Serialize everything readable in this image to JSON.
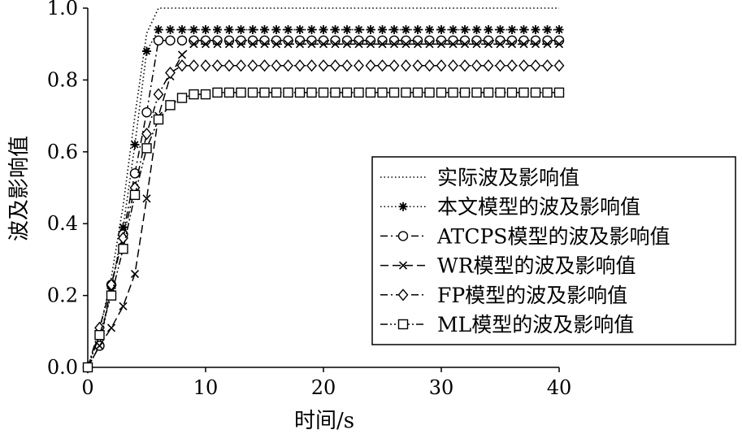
{
  "chart_data": {
    "type": "line",
    "title": "",
    "xlabel": "时间/s",
    "ylabel": "波及影响值",
    "xlim": [
      0,
      40
    ],
    "ylim": [
      0,
      1.0
    ],
    "xticks": [
      "0",
      "10",
      "20",
      "30",
      "40"
    ],
    "yticks": [
      "0.0",
      "0.2",
      "0.4",
      "0.6",
      "0.8",
      "1.0"
    ],
    "grid": false,
    "legend_position": "right",
    "series": [
      {
        "name": "实际波及影响值",
        "style": "dotted",
        "marker": "none",
        "x": [
          0,
          1,
          2,
          3,
          4,
          5,
          6,
          7,
          8,
          9,
          10,
          11,
          12,
          13,
          14,
          15,
          16,
          17,
          18,
          19,
          20,
          21,
          22,
          23,
          24,
          25,
          26,
          27,
          28,
          29,
          30,
          31,
          32,
          33,
          34,
          35,
          36,
          37,
          38,
          39,
          40
        ],
        "y": [
          0,
          0.1,
          0.25,
          0.45,
          0.7,
          0.93,
          1.0,
          1.0,
          1.0,
          1.0,
          1.0,
          1.0,
          1.0,
          1.0,
          1.0,
          1.0,
          1.0,
          1.0,
          1.0,
          1.0,
          1.0,
          1.0,
          1.0,
          1.0,
          1.0,
          1.0,
          1.0,
          1.0,
          1.0,
          1.0,
          1.0,
          1.0,
          1.0,
          1.0,
          1.0,
          1.0,
          1.0,
          1.0,
          1.0,
          1.0,
          1.0
        ]
      },
      {
        "name": "本文模型的波及影响值",
        "style": "dotted",
        "marker": "asterisk",
        "x": [
          0,
          1,
          2,
          3,
          4,
          5,
          6,
          7,
          8,
          9,
          10,
          11,
          12,
          13,
          14,
          15,
          16,
          17,
          18,
          19,
          20,
          21,
          22,
          23,
          24,
          25,
          26,
          27,
          28,
          29,
          30,
          31,
          32,
          33,
          34,
          35,
          36,
          37,
          38,
          39,
          40
        ],
        "y": [
          0,
          0.06,
          0.22,
          0.39,
          0.62,
          0.88,
          0.94,
          0.94,
          0.94,
          0.94,
          0.94,
          0.94,
          0.94,
          0.94,
          0.94,
          0.94,
          0.94,
          0.94,
          0.94,
          0.94,
          0.94,
          0.94,
          0.94,
          0.94,
          0.94,
          0.94,
          0.94,
          0.94,
          0.94,
          0.94,
          0.94,
          0.94,
          0.94,
          0.94,
          0.94,
          0.94,
          0.94,
          0.94,
          0.94,
          0.94,
          0.94
        ]
      },
      {
        "name": "ATCPS模型的波及影响值",
        "style": "dash-dot",
        "marker": "circle",
        "x": [
          0,
          1,
          2,
          3,
          4,
          5,
          6,
          7,
          8,
          9,
          10,
          11,
          12,
          13,
          14,
          15,
          16,
          17,
          18,
          19,
          20,
          21,
          22,
          23,
          24,
          25,
          26,
          27,
          28,
          29,
          30,
          31,
          32,
          33,
          34,
          35,
          36,
          37,
          38,
          39,
          40
        ],
        "y": [
          0,
          0.06,
          0.23,
          0.37,
          0.54,
          0.71,
          0.91,
          0.91,
          0.91,
          0.91,
          0.91,
          0.91,
          0.91,
          0.91,
          0.91,
          0.91,
          0.91,
          0.91,
          0.91,
          0.91,
          0.91,
          0.91,
          0.91,
          0.91,
          0.91,
          0.91,
          0.91,
          0.91,
          0.91,
          0.91,
          0.91,
          0.91,
          0.91,
          0.91,
          0.91,
          0.91,
          0.91,
          0.91,
          0.91,
          0.91,
          0.91
        ]
      },
      {
        "name": "WR模型的波及影响值",
        "style": "dashed",
        "marker": "cross",
        "x": [
          0,
          1,
          2,
          3,
          4,
          5,
          6,
          7,
          8,
          9,
          10,
          11,
          12,
          13,
          14,
          15,
          16,
          17,
          18,
          19,
          20,
          21,
          22,
          23,
          24,
          25,
          26,
          27,
          28,
          29,
          30,
          31,
          32,
          33,
          34,
          35,
          36,
          37,
          38,
          39,
          40
        ],
        "y": [
          0,
          0.06,
          0.11,
          0.17,
          0.26,
          0.47,
          0.7,
          0.81,
          0.87,
          0.9,
          0.9,
          0.9,
          0.9,
          0.9,
          0.9,
          0.9,
          0.9,
          0.9,
          0.9,
          0.9,
          0.9,
          0.9,
          0.9,
          0.9,
          0.9,
          0.9,
          0.9,
          0.9,
          0.9,
          0.9,
          0.9,
          0.9,
          0.9,
          0.9,
          0.9,
          0.9,
          0.9,
          0.9,
          0.9,
          0.9,
          0.9
        ]
      },
      {
        "name": "FP模型的波及影响值",
        "style": "dash-dot",
        "marker": "diamond",
        "x": [
          0,
          1,
          2,
          3,
          4,
          5,
          6,
          7,
          8,
          9,
          10,
          11,
          12,
          13,
          14,
          15,
          16,
          17,
          18,
          19,
          20,
          21,
          22,
          23,
          24,
          25,
          26,
          27,
          28,
          29,
          30,
          31,
          32,
          33,
          34,
          35,
          36,
          37,
          38,
          39,
          40
        ],
        "y": [
          0,
          0.11,
          0.23,
          0.36,
          0.5,
          0.65,
          0.76,
          0.82,
          0.84,
          0.84,
          0.84,
          0.84,
          0.84,
          0.84,
          0.84,
          0.84,
          0.84,
          0.84,
          0.84,
          0.84,
          0.84,
          0.84,
          0.84,
          0.84,
          0.84,
          0.84,
          0.84,
          0.84,
          0.84,
          0.84,
          0.84,
          0.84,
          0.84,
          0.84,
          0.84,
          0.84,
          0.84,
          0.84,
          0.84,
          0.84,
          0.84
        ]
      },
      {
        "name": "ML模型的波及影响值",
        "style": "dash-dot-dot",
        "marker": "square",
        "x": [
          0,
          1,
          2,
          3,
          4,
          5,
          6,
          7,
          8,
          9,
          10,
          11,
          12,
          13,
          14,
          15,
          16,
          17,
          18,
          19,
          20,
          21,
          22,
          23,
          24,
          25,
          26,
          27,
          28,
          29,
          30,
          31,
          32,
          33,
          34,
          35,
          36,
          37,
          38,
          39,
          40
        ],
        "y": [
          0,
          0.09,
          0.2,
          0.33,
          0.48,
          0.61,
          0.69,
          0.73,
          0.75,
          0.76,
          0.76,
          0.765,
          0.765,
          0.765,
          0.765,
          0.765,
          0.765,
          0.765,
          0.765,
          0.765,
          0.765,
          0.765,
          0.765,
          0.765,
          0.765,
          0.765,
          0.765,
          0.765,
          0.765,
          0.765,
          0.765,
          0.765,
          0.765,
          0.765,
          0.765,
          0.765,
          0.765,
          0.765,
          0.765,
          0.765,
          0.765
        ]
      }
    ]
  }
}
